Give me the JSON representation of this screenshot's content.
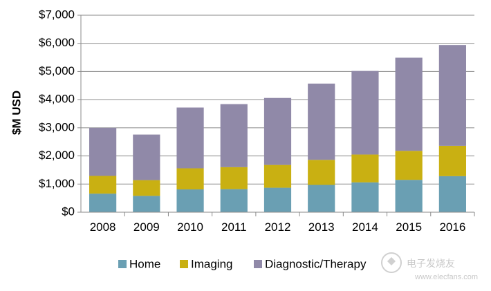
{
  "chart_data": {
    "type": "stacked-bar",
    "title": "",
    "xlabel": "",
    "ylabel": "$M USD",
    "ylim": [
      0,
      7000
    ],
    "ytick_step": 1000,
    "ytick_labels": [
      "$0",
      "$1,000",
      "$2,000",
      "$3,000",
      "$4,000",
      "$5,000",
      "$6,000",
      "$7,000"
    ],
    "grid": true,
    "legend_position": "bottom",
    "categories": [
      "2008",
      "2009",
      "2010",
      "2011",
      "2012",
      "2013",
      "2014",
      "2015",
      "2016"
    ],
    "series": [
      {
        "name": "Home",
        "color": "#6a9fb3",
        "values": [
          660,
          580,
          810,
          820,
          870,
          970,
          1060,
          1150,
          1280
        ]
      },
      {
        "name": "Imaging",
        "color": "#c9b012",
        "values": [
          630,
          560,
          750,
          780,
          810,
          890,
          990,
          1030,
          1080
        ]
      },
      {
        "name": "Diagnostic/Therapy",
        "color": "#9089a8",
        "values": [
          1710,
          1620,
          2160,
          2240,
          2380,
          2710,
          2970,
          3310,
          3580
        ]
      }
    ]
  },
  "watermark": {
    "text": "电子发烧友",
    "url_text": "www.elecfans.com"
  }
}
